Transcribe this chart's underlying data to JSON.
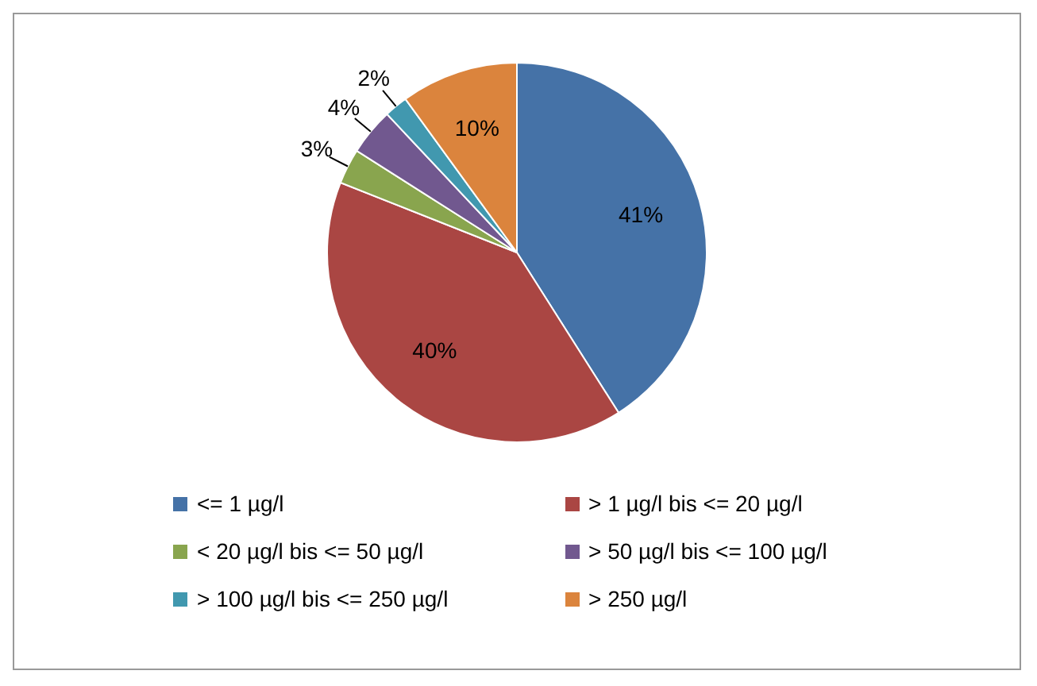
{
  "chart_data": {
    "type": "pie",
    "categories": [
      "<= 1 µg/l",
      "> 1 µg/l bis <= 20 µg/l",
      "< 20 µg/l bis <= 50 µg/l",
      "> 50 µg/l bis <= 100 µg/l",
      "> 100 µg/l bis <= 250 µg/l",
      "> 250 µg/l"
    ],
    "values": [
      41,
      40,
      3,
      4,
      2,
      10
    ],
    "colors": [
      "#4572a7",
      "#aa4643",
      "#89a54e",
      "#71588f",
      "#4198af",
      "#db843d"
    ],
    "value_labels": [
      "41%",
      "40%",
      "3%",
      "4%",
      "2%",
      "10%"
    ],
    "legend": "bottom"
  }
}
